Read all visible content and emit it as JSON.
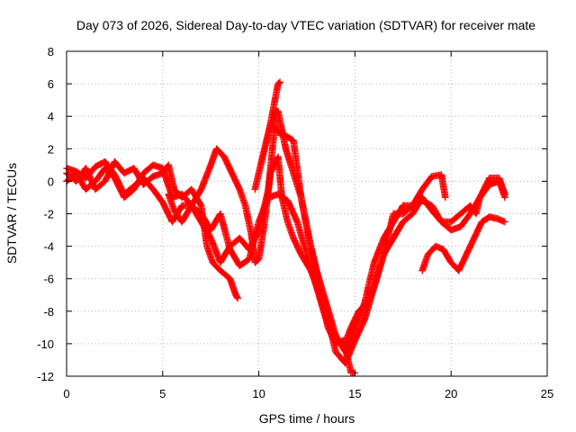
{
  "chart_data": {
    "type": "scatter",
    "title": "Day 073 of 2026, Sidereal Day-to-day VTEC variation (SDTVAR) for receiver mate",
    "xlabel": "GPS time / hours",
    "ylabel": "SDTVAR / TECUs",
    "xlim": [
      0,
      25
    ],
    "ylim": [
      -12,
      8
    ],
    "xticks": [
      "0",
      "5",
      "10",
      "15",
      "20",
      "25"
    ],
    "yticks": [
      "8",
      "6",
      "4",
      "2",
      "0",
      "-2",
      "-4",
      "-6",
      "-8",
      "-10",
      "-12"
    ],
    "grid": true,
    "marker": "plus",
    "color": "#ff0000",
    "series": [
      {
        "points": [
          [
            0,
            0.8
          ],
          [
            0.5,
            0.6
          ],
          [
            1,
            0.2
          ],
          [
            1.5,
            0.9
          ],
          [
            2,
            1.2
          ],
          [
            2.5,
            0.4
          ],
          [
            3,
            -0.8
          ],
          [
            3.5,
            -0.3
          ],
          [
            4,
            0.2
          ],
          [
            4.5,
            -0.5
          ],
          [
            5,
            -1.3
          ],
          [
            5.5,
            -2.5
          ],
          [
            6,
            -1.5
          ],
          [
            6.5,
            -1.5
          ],
          [
            7,
            -2.5
          ],
          [
            7.5,
            -3.5
          ],
          [
            8,
            -5
          ],
          [
            8.5,
            -4
          ],
          [
            9,
            -3.5
          ],
          [
            9.5,
            -4.2
          ],
          [
            10,
            -3
          ],
          [
            10.5,
            -0.5
          ],
          [
            10.9,
            4.3
          ],
          [
            11,
            4.3
          ],
          [
            11.4,
            2
          ],
          [
            11.8,
            0.5
          ],
          [
            12.2,
            -1
          ],
          [
            12.7,
            -4
          ],
          [
            13.2,
            -6.5
          ],
          [
            13.6,
            -8.5
          ],
          [
            14,
            -10.5
          ],
          [
            14.5,
            -11.2
          ],
          [
            15,
            -9.8
          ],
          [
            15.5,
            -8.5
          ],
          [
            16,
            -6.5
          ],
          [
            16.5,
            -4.5
          ],
          [
            17,
            -2
          ],
          [
            17.5,
            -2
          ],
          [
            18,
            -1.5
          ],
          [
            18.5,
            -0.5
          ],
          [
            19,
            0.3
          ],
          [
            19.5,
            0.4
          ],
          [
            19.7,
            -1
          ]
        ]
      },
      {
        "points": [
          [
            0,
            0
          ],
          [
            0.5,
            0.5
          ],
          [
            1,
            -0.5
          ],
          [
            1.5,
            0
          ],
          [
            2,
            0.8
          ],
          [
            2.5,
            0.2
          ],
          [
            3,
            -1
          ],
          [
            3.5,
            -0.5
          ],
          [
            4,
            0.5
          ],
          [
            4.5,
            1
          ],
          [
            5,
            0.8
          ],
          [
            5.5,
            -1
          ],
          [
            6,
            -0.8
          ],
          [
            6.5,
            -1.5
          ],
          [
            7,
            -2
          ],
          [
            7.5,
            -3
          ],
          [
            8,
            -2
          ],
          [
            8.5,
            -4.2
          ],
          [
            9,
            -5.2
          ],
          [
            9.5,
            -4.8
          ],
          [
            10,
            -2.5
          ],
          [
            10.5,
            -1
          ],
          [
            11,
            -0.8
          ],
          [
            11.5,
            -1.2
          ],
          [
            12,
            -2.5
          ],
          [
            12.5,
            -4.5
          ],
          [
            13,
            -6.5
          ],
          [
            13.5,
            -8.5
          ],
          [
            14,
            -9.5
          ],
          [
            14.5,
            -10.5
          ],
          [
            15,
            -9
          ],
          [
            15.5,
            -7.5
          ],
          [
            16,
            -5
          ],
          [
            16.5,
            -3.5
          ],
          [
            17,
            -2.5
          ],
          [
            17.5,
            -1.5
          ],
          [
            18,
            -1.5
          ],
          [
            18.5,
            -1.2
          ],
          [
            19,
            -1.5
          ],
          [
            19.5,
            -2.5
          ],
          [
            20,
            -3
          ],
          [
            20.5,
            -2.8
          ],
          [
            21,
            -2
          ],
          [
            21.5,
            -1
          ],
          [
            22,
            0.2
          ],
          [
            22.5,
            0.2
          ],
          [
            22.8,
            -0.8
          ]
        ]
      },
      {
        "points": [
          [
            0,
            0.5
          ],
          [
            0.5,
            0
          ],
          [
            1,
            0.8
          ],
          [
            1.5,
            -0.5
          ],
          [
            2,
            0
          ],
          [
            2.5,
            1.2
          ],
          [
            3,
            0.5
          ],
          [
            3.5,
            0.8
          ],
          [
            4,
            -0.2
          ],
          [
            4.5,
            0.3
          ],
          [
            5,
            0.5
          ],
          [
            5.3,
            1
          ],
          [
            5.6,
            -0.5
          ],
          [
            6,
            -1
          ],
          [
            6.5,
            -0.5
          ],
          [
            7,
            -1.5
          ],
          [
            7.3,
            -4
          ],
          [
            7.6,
            -5
          ],
          [
            8,
            -5.5
          ],
          [
            8.5,
            -6
          ],
          [
            8.8,
            -7
          ],
          [
            8.9,
            -7.2
          ]
        ]
      },
      {
        "points": [
          [
            5.3,
            -0.8
          ],
          [
            5.6,
            -1.8
          ],
          [
            6,
            -2.5
          ],
          [
            6.5,
            -1.5
          ],
          [
            7,
            -0.5
          ],
          [
            7.5,
            1
          ],
          [
            7.8,
            2
          ],
          [
            8.2,
            1.5
          ],
          [
            8.6,
            0.5
          ],
          [
            9,
            -0.5
          ],
          [
            9.3,
            -1.5
          ],
          [
            9.6,
            -3.2
          ],
          [
            9.8,
            -5
          ],
          [
            10,
            -4.8
          ],
          [
            10.3,
            -2.5
          ],
          [
            10.6,
            0.5
          ],
          [
            11,
            1.5
          ],
          [
            11.2,
            -1
          ],
          [
            11.5,
            -2.5
          ],
          [
            11.8,
            -3.5
          ],
          [
            12.2,
            -4.5
          ],
          [
            12.7,
            -5.5
          ],
          [
            13.2,
            -7
          ],
          [
            13.6,
            -9
          ],
          [
            14,
            -10
          ],
          [
            14.4,
            -9.8
          ],
          [
            14.8,
            -11.8
          ],
          [
            15,
            -11.8
          ]
        ]
      },
      {
        "points": [
          [
            9.8,
            -0.5
          ],
          [
            10.2,
            1.5
          ],
          [
            10.6,
            3.5
          ],
          [
            11,
            6
          ],
          [
            11.1,
            6.1
          ]
        ]
      },
      {
        "points": [
          [
            10.7,
            3.5
          ],
          [
            11,
            3
          ],
          [
            11.4,
            2.8
          ],
          [
            11.8,
            2.5
          ],
          [
            12.2,
            -1
          ],
          [
            12.6,
            -3.5
          ],
          [
            13,
            -5.5
          ],
          [
            13.5,
            -7.5
          ],
          [
            14,
            -9.5
          ],
          [
            14.4,
            -10.2
          ],
          [
            14.8,
            -9
          ],
          [
            15.2,
            -8
          ],
          [
            15.6,
            -7.5
          ],
          [
            16,
            -6.5
          ],
          [
            16.5,
            -4.5
          ],
          [
            17,
            -3.5
          ],
          [
            17.5,
            -2.5
          ],
          [
            18,
            -2
          ],
          [
            18.5,
            -1
          ],
          [
            19,
            -1.8
          ],
          [
            19.5,
            -2.5
          ],
          [
            20,
            -2.5
          ],
          [
            20.5,
            -2
          ],
          [
            21,
            -1.5
          ],
          [
            21.3,
            -2
          ],
          [
            21.5,
            -1
          ],
          [
            22,
            -0.2
          ],
          [
            22.5,
            0
          ],
          [
            22.8,
            -1
          ]
        ]
      },
      {
        "points": [
          [
            18.5,
            -5.5
          ],
          [
            18.8,
            -4.5
          ],
          [
            19.2,
            -4
          ],
          [
            19.6,
            -4.2
          ],
          [
            20,
            -5
          ],
          [
            20.4,
            -5.5
          ],
          [
            20.8,
            -4.5
          ],
          [
            21.2,
            -3.5
          ],
          [
            21.6,
            -2.5
          ],
          [
            22,
            -2.2
          ],
          [
            22.4,
            -2.3
          ],
          [
            22.8,
            -2.5
          ]
        ]
      }
    ]
  }
}
